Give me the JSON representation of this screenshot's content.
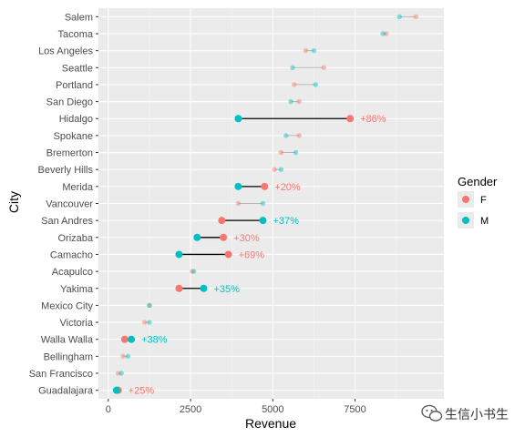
{
  "chart_data": {
    "type": "dumbbell",
    "xlabel": "Revenue",
    "ylabel": "City",
    "xlim": [
      -300,
      10200
    ],
    "xticks": [
      0,
      2500,
      5000,
      7500
    ],
    "xtick_labels": [
      "0",
      "2500",
      "5000",
      "7500"
    ],
    "grid": true,
    "legend": {
      "title": "Gender",
      "position": "right",
      "entries": [
        {
          "key": "F",
          "label": "F",
          "color": "#F8766D"
        },
        {
          "key": "M",
          "label": "M",
          "color": "#00BFC4"
        }
      ]
    },
    "rows": [
      {
        "city": "Salem",
        "F": 9350,
        "M": 8850,
        "highlight": false,
        "label": ""
      },
      {
        "city": "Tacoma",
        "F": 8450,
        "M": 8350,
        "highlight": false,
        "label": ""
      },
      {
        "city": "Los Angeles",
        "F": 6000,
        "M": 6250,
        "highlight": false,
        "label": ""
      },
      {
        "city": "Seattle",
        "F": 6550,
        "M": 5600,
        "highlight": false,
        "label": ""
      },
      {
        "city": "Portland",
        "F": 5650,
        "M": 6300,
        "highlight": false,
        "label": ""
      },
      {
        "city": "San Diego",
        "F": 5800,
        "M": 5550,
        "highlight": false,
        "label": ""
      },
      {
        "city": "Hidalgo",
        "F": 7350,
        "M": 3950,
        "highlight": true,
        "label": "+86%"
      },
      {
        "city": "Spokane",
        "F": 5800,
        "M": 5400,
        "highlight": false,
        "label": ""
      },
      {
        "city": "Bremerton",
        "F": 5250,
        "M": 5700,
        "highlight": false,
        "label": ""
      },
      {
        "city": "Beverly Hills",
        "F": 5050,
        "M": 5250,
        "highlight": false,
        "label": ""
      },
      {
        "city": "Merida",
        "F": 4750,
        "M": 3950,
        "highlight": true,
        "label": "+20%"
      },
      {
        "city": "Vancouver",
        "F": 3950,
        "M": 4700,
        "highlight": false,
        "label": ""
      },
      {
        "city": "San Andres",
        "F": 3450,
        "M": 4700,
        "highlight": true,
        "label": "+37%"
      },
      {
        "city": "Orizaba",
        "F": 3500,
        "M": 2700,
        "highlight": true,
        "label": "+30%"
      },
      {
        "city": "Camacho",
        "F": 3650,
        "M": 2150,
        "highlight": true,
        "label": "+69%"
      },
      {
        "city": "Acapulco",
        "F": 2550,
        "M": 2600,
        "highlight": false,
        "label": ""
      },
      {
        "city": "Yakima",
        "F": 2150,
        "M": 2900,
        "highlight": true,
        "label": "+35%"
      },
      {
        "city": "Mexico City",
        "F": 1250,
        "M": 1250,
        "highlight": false,
        "label": ""
      },
      {
        "city": "Victoria",
        "F": 1100,
        "M": 1250,
        "highlight": false,
        "label": ""
      },
      {
        "city": "Walla Walla",
        "F": 500,
        "M": 700,
        "highlight": true,
        "label": "+38%"
      },
      {
        "city": "Bellingham",
        "F": 450,
        "M": 600,
        "highlight": false,
        "label": ""
      },
      {
        "city": "San Francisco",
        "F": 300,
        "M": 400,
        "highlight": false,
        "label": ""
      },
      {
        "city": "Guadalajara",
        "F": 300,
        "M": 250,
        "highlight": true,
        "label": "+25%"
      }
    ]
  },
  "watermark": {
    "text": "生信小书生",
    "icon": "wechat-icon"
  }
}
